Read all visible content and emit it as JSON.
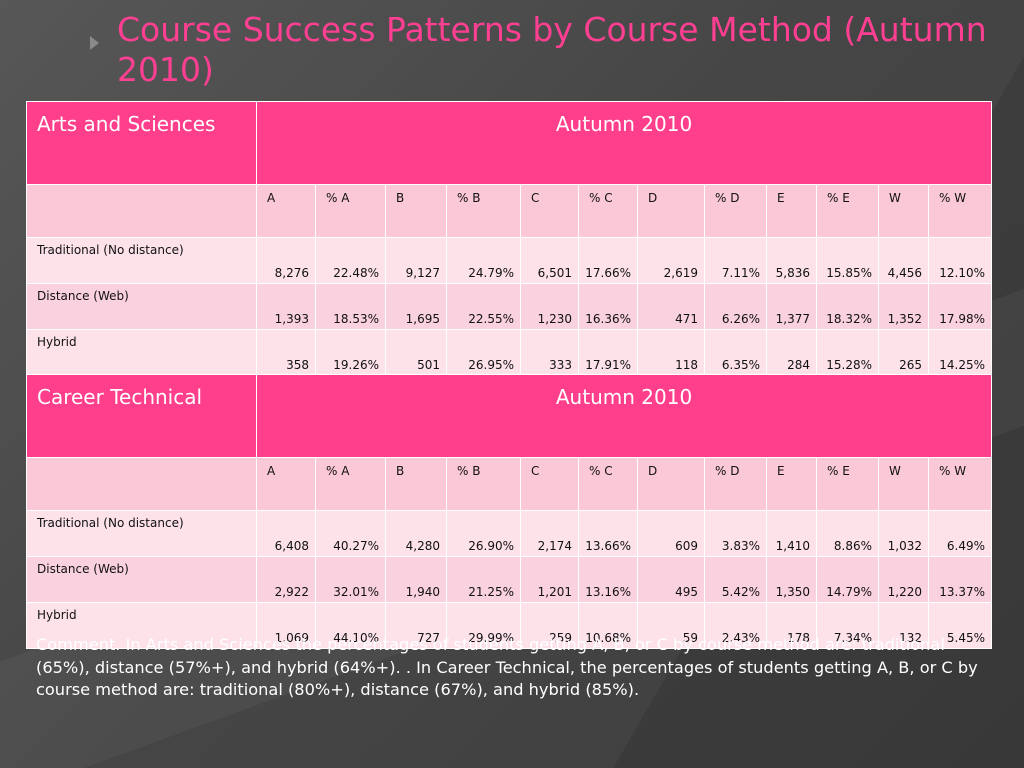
{
  "title": "Course Success Patterns by Course Method (Autumn 2010)",
  "columns": [
    "A",
    "% A",
    "B",
    "% B",
    "C",
    "% C",
    "D",
    "% D",
    "E",
    "% E",
    "W",
    "% W"
  ],
  "tables": [
    {
      "division": "Arts and Sciences",
      "term": "Autumn 2010",
      "rows": [
        {
          "method": "Traditional (No distance)",
          "values": [
            "8,276",
            "22.48%",
            "9,127",
            "24.79%",
            "6,501",
            "17.66%",
            "2,619",
            "7.11%",
            "5,836",
            "15.85%",
            "4,456",
            "12.10%"
          ]
        },
        {
          "method": "Distance (Web)",
          "values": [
            "1,393",
            "18.53%",
            "1,695",
            "22.55%",
            "1,230",
            "16.36%",
            "471",
            "6.26%",
            "1,377",
            "18.32%",
            "1,352",
            "17.98%"
          ]
        },
        {
          "method": "Hybrid",
          "values": [
            "358",
            "19.26%",
            "501",
            "26.95%",
            "333",
            "17.91%",
            "118",
            "6.35%",
            "284",
            "15.28%",
            "265",
            "14.25%"
          ]
        }
      ]
    },
    {
      "division": "Career Technical",
      "term": "Autumn 2010",
      "rows": [
        {
          "method": "Traditional (No distance)",
          "values": [
            "6,408",
            "40.27%",
            "4,280",
            "26.90%",
            "2,174",
            "13.66%",
            "609",
            "3.83%",
            "1,410",
            "8.86%",
            "1,032",
            "6.49%"
          ]
        },
        {
          "method": "Distance (Web)",
          "values": [
            "2,922",
            "32.01%",
            "1,940",
            "21.25%",
            "1,201",
            "13.16%",
            "495",
            "5.42%",
            "1,350",
            "14.79%",
            "1,220",
            "13.37%"
          ]
        },
        {
          "method": "Hybrid",
          "values": [
            "1,069",
            "44.10%",
            "727",
            "29.99%",
            "259",
            "10.68%",
            "59",
            "2.43%",
            "178",
            "7.34%",
            "132",
            "5.45%"
          ]
        }
      ]
    }
  ],
  "comment": "Comment.  In Arts and Sciences the percentages of students getting A, B, or C by course method are:  traditional (65%), distance (57%+), and hybrid (64%+). .  In Career Technical, the percentages of students getting A, B, or C by course method are:  traditional (80%+), distance (67%), and hybrid (85%).",
  "colors": {
    "title": "#ff3f92",
    "header": "#ff3f8c",
    "subheader": "#fbc8d7",
    "row": "#fde2ea",
    "row_alt": "#fad1de"
  }
}
